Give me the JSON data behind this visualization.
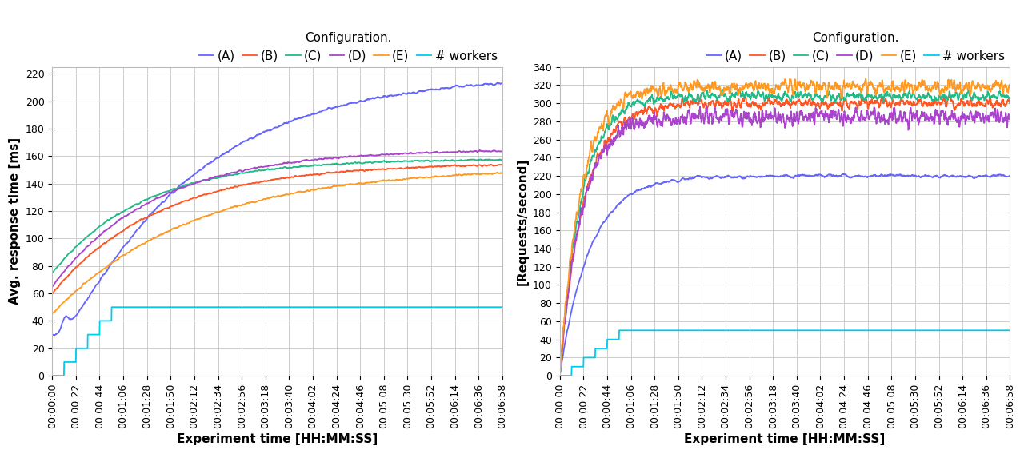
{
  "colors": {
    "A": "#6666ff",
    "B": "#ff5522",
    "C": "#22bb88",
    "D": "#aa44cc",
    "E": "#ff9922",
    "workers": "#00ccee"
  },
  "legend_labels": [
    "(A)",
    "(B)",
    "(C)",
    "(D)",
    "(E)",
    "# workers"
  ],
  "legend_prefix": "Configuration.",
  "xlabel": "Experiment time [HH:MM:SS]",
  "ylabel_left": "Avg. response time [ms]",
  "ylabel_right": "[Requests/second]",
  "total_seconds": 418,
  "xlim": [
    0,
    418
  ],
  "ylim_left": [
    0,
    225
  ],
  "ylim_right": [
    0,
    340
  ],
  "yticks_left": [
    0,
    20,
    40,
    60,
    80,
    100,
    120,
    140,
    160,
    180,
    200,
    220
  ],
  "yticks_right": [
    0,
    20,
    40,
    60,
    80,
    100,
    120,
    140,
    160,
    180,
    200,
    220,
    240,
    260,
    280,
    300,
    320,
    340
  ],
  "xtick_interval": 22,
  "background_color": "#ffffff",
  "grid_color": "#cccccc",
  "legend_fontsize": 11,
  "axis_label_fontsize": 11,
  "tick_fontsize": 9,
  "linewidth": 1.3
}
